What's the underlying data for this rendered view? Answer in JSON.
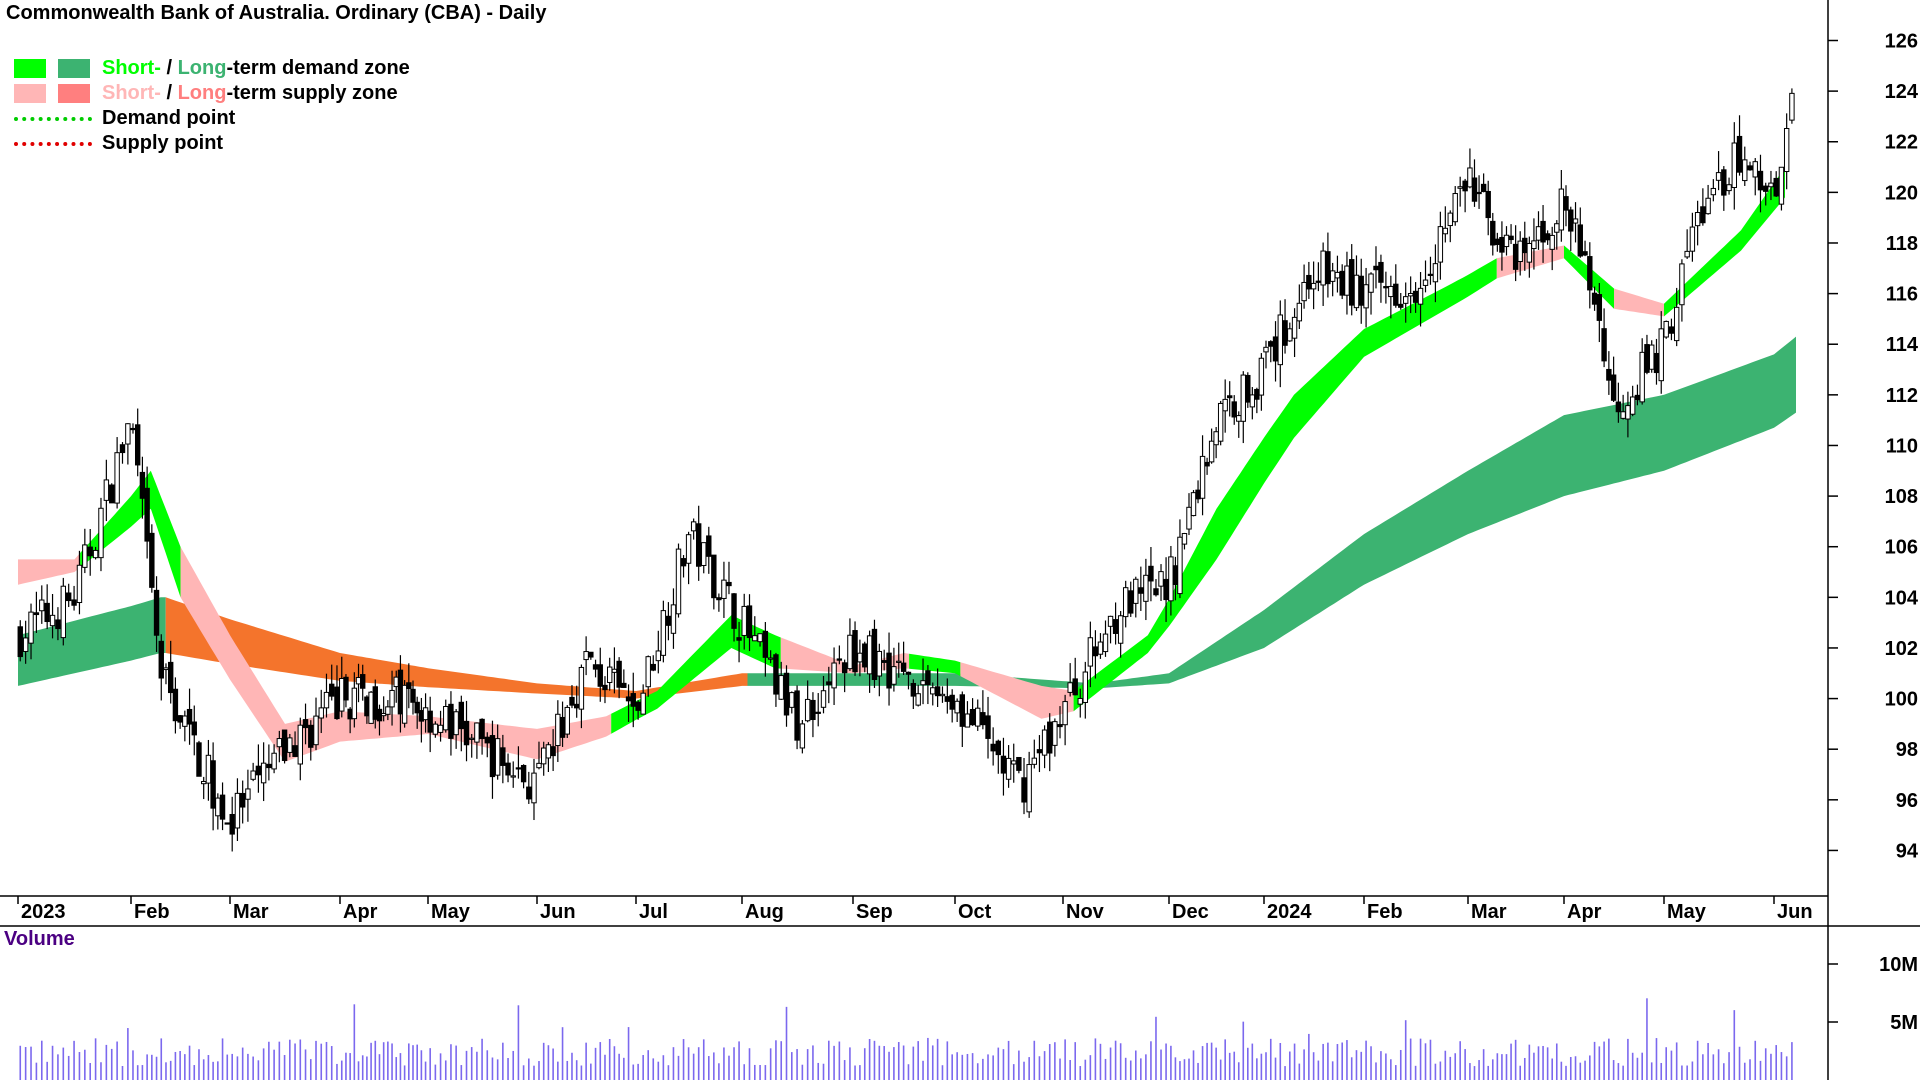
{
  "title": "Commonwealth Bank of Australia. Ordinary (CBA) - Daily",
  "legend": {
    "demand_short": "Short-",
    "demand_sep": " / ",
    "demand_long": "Long",
    "demand_rest": "-term demand zone",
    "supply_short": "Short-",
    "supply_sep": " / ",
    "supply_long": "Long",
    "supply_rest": "-term supply zone",
    "demand_point": "Demand point",
    "supply_point": "Supply point"
  },
  "colors": {
    "short_demand": "#00ff00",
    "long_demand": "#3cb371",
    "short_supply": "#ffb6b6",
    "long_supply": "#ff7f7f",
    "supply_band": "#f4742c",
    "demand_point": "#00cc00",
    "supply_point": "#e00000",
    "volume_bar": "#7b68ee",
    "volume_label": "#4b0082"
  },
  "chart_data": {
    "type": "candlestick",
    "x_labels": [
      "2023",
      "Feb",
      "Mar",
      "Apr",
      "May",
      "Jun",
      "Jul",
      "Aug",
      "Sep",
      "Oct",
      "Nov",
      "Dec",
      "2024",
      "Feb",
      "Mar",
      "Apr",
      "May",
      "Jun"
    ],
    "y_ticks": [
      94,
      96,
      98,
      100,
      102,
      104,
      106,
      108,
      110,
      112,
      114,
      116,
      118,
      120,
      122,
      124,
      126
    ],
    "ylim": [
      92.2,
      127.6
    ],
    "volume_label": "Volume",
    "volume_ticks": [
      "10M",
      "5M"
    ],
    "price_anchors": [
      {
        "month_index": 0,
        "close": 102.5
      },
      {
        "month_index": 0.5,
        "close": 104.0
      },
      {
        "month_index": 1.0,
        "close": 111.0
      },
      {
        "month_index": 1.3,
        "close": 101.0
      },
      {
        "month_index": 2.0,
        "close": 95.0
      },
      {
        "month_index": 2.4,
        "close": 97.5
      },
      {
        "month_index": 3.0,
        "close": 100.0
      },
      {
        "month_index": 3.7,
        "close": 100.0
      },
      {
        "month_index": 4.2,
        "close": 99.0
      },
      {
        "month_index": 5.0,
        "close": 96.5
      },
      {
        "month_index": 5.5,
        "close": 101.5
      },
      {
        "month_index": 6.0,
        "close": 99.5
      },
      {
        "month_index": 6.5,
        "close": 106.5
      },
      {
        "month_index": 7.0,
        "close": 103.0
      },
      {
        "month_index": 7.5,
        "close": 99.0
      },
      {
        "month_index": 8.0,
        "close": 102.0
      },
      {
        "month_index": 8.5,
        "close": 101.0
      },
      {
        "month_index": 9.0,
        "close": 100.0
      },
      {
        "month_index": 9.6,
        "close": 96.5
      },
      {
        "month_index": 10.0,
        "close": 99.5
      },
      {
        "month_index": 10.5,
        "close": 103.5
      },
      {
        "month_index": 11.0,
        "close": 104.5
      },
      {
        "month_index": 11.5,
        "close": 111.0
      },
      {
        "month_index": 12.0,
        "close": 113.0
      },
      {
        "month_index": 12.5,
        "close": 117.0
      },
      {
        "month_index": 13.0,
        "close": 116.0
      },
      {
        "month_index": 13.5,
        "close": 116.5
      },
      {
        "month_index": 14.0,
        "close": 120.5
      },
      {
        "month_index": 14.5,
        "close": 117.0
      },
      {
        "month_index": 15.0,
        "close": 119.5
      },
      {
        "month_index": 15.3,
        "close": 116.0
      },
      {
        "month_index": 15.5,
        "close": 111.5
      },
      {
        "month_index": 16.0,
        "close": 114.0
      },
      {
        "month_index": 16.3,
        "close": 119.0
      },
      {
        "month_index": 16.7,
        "close": 121.5
      },
      {
        "month_index": 17.0,
        "close": 120.0
      },
      {
        "month_index": 17.2,
        "close": 125.0
      }
    ],
    "short_zone": [
      {
        "month_index": 0,
        "upper": 105.5,
        "lower": 104.5,
        "zone": "supply"
      },
      {
        "month_index": 0.5,
        "upper": 105.5,
        "lower": 105.0,
        "zone": "demand"
      },
      {
        "month_index": 1.2,
        "upper": 109.0,
        "lower": 107.5,
        "zone": "demand"
      },
      {
        "month_index": 1.5,
        "upper": 106.0,
        "lower": 104.0,
        "zone": "supply"
      },
      {
        "month_index": 2.5,
        "upper": 99.0,
        "lower": 97.5,
        "zone": "supply"
      },
      {
        "month_index": 3.0,
        "upper": 99.5,
        "lower": 98.3,
        "zone": "supply"
      },
      {
        "month_index": 4.0,
        "upper": 99.3,
        "lower": 98.6,
        "zone": "supply"
      },
      {
        "month_index": 5.0,
        "upper": 98.8,
        "lower": 97.6,
        "zone": "supply"
      },
      {
        "month_index": 5.7,
        "upper": 99.3,
        "lower": 98.5,
        "zone": "demand"
      },
      {
        "month_index": 6.2,
        "upper": 100.3,
        "lower": 99.6,
        "zone": "demand"
      },
      {
        "month_index": 6.9,
        "upper": 103.3,
        "lower": 102.0,
        "zone": "demand"
      },
      {
        "month_index": 7.3,
        "upper": 102.5,
        "lower": 101.2,
        "zone": "supply"
      },
      {
        "month_index": 8.0,
        "upper": 101.3,
        "lower": 101.0,
        "zone": "supply"
      },
      {
        "month_index": 8.5,
        "upper": 101.8,
        "lower": 101.2,
        "zone": "demand"
      },
      {
        "month_index": 9.0,
        "upper": 101.5,
        "lower": 101.0,
        "zone": "supply"
      },
      {
        "month_index": 9.8,
        "upper": 100.5,
        "lower": 99.2,
        "zone": "supply"
      },
      {
        "month_index": 10.1,
        "upper": 100.3,
        "lower": 99.5,
        "zone": "demand"
      },
      {
        "month_index": 10.8,
        "upper": 102.5,
        "lower": 101.8,
        "zone": "demand"
      },
      {
        "month_index": 11.5,
        "upper": 107.5,
        "lower": 105.5,
        "zone": "demand"
      },
      {
        "month_index": 12.3,
        "upper": 112.0,
        "lower": 110.3,
        "zone": "demand"
      },
      {
        "month_index": 13.0,
        "upper": 114.6,
        "lower": 113.5,
        "zone": "demand"
      },
      {
        "month_index": 13.8,
        "upper": 116.3,
        "lower": 115.4,
        "zone": "demand"
      },
      {
        "month_index": 14.3,
        "upper": 117.4,
        "lower": 116.6,
        "zone": "supply"
      },
      {
        "month_index": 15.0,
        "upper": 117.9,
        "lower": 117.4,
        "zone": "demand"
      },
      {
        "month_index": 15.5,
        "upper": 116.2,
        "lower": 115.4,
        "zone": "supply"
      },
      {
        "month_index": 16.0,
        "upper": 115.6,
        "lower": 115.1,
        "zone": "demand"
      },
      {
        "month_index": 16.7,
        "upper": 118.5,
        "lower": 117.7,
        "zone": "demand"
      },
      {
        "month_index": 17.1,
        "upper": 121.0,
        "lower": 119.8,
        "zone": "demand"
      }
    ],
    "long_zone": [
      {
        "month_index": 0,
        "upper": 102.5,
        "lower": 100.5,
        "zone": "demand"
      },
      {
        "month_index": 1.3,
        "upper": 104.0,
        "lower": 101.8,
        "zone": "demand"
      },
      {
        "month_index": 1.35,
        "upper": 104.0,
        "lower": 101.8,
        "zone": "supply"
      },
      {
        "month_index": 3.0,
        "upper": 101.8,
        "lower": 100.7,
        "zone": "supply"
      },
      {
        "month_index": 5.0,
        "upper": 100.6,
        "lower": 100.2,
        "zone": "supply"
      },
      {
        "month_index": 6.0,
        "upper": 100.3,
        "lower": 100.0,
        "zone": "supply"
      },
      {
        "month_index": 7.0,
        "upper": 101.0,
        "lower": 100.5,
        "zone": "demand"
      },
      {
        "month_index": 9.0,
        "upper": 101.0,
        "lower": 100.5,
        "zone": "demand"
      },
      {
        "month_index": 10.3,
        "upper": 100.6,
        "lower": 100.4,
        "zone": "demand"
      },
      {
        "month_index": 11.0,
        "upper": 101.0,
        "lower": 100.6,
        "zone": "demand"
      },
      {
        "month_index": 12.0,
        "upper": 103.5,
        "lower": 102.0,
        "zone": "demand"
      },
      {
        "month_index": 13.0,
        "upper": 106.5,
        "lower": 104.5,
        "zone": "demand"
      },
      {
        "month_index": 14.0,
        "upper": 109.0,
        "lower": 106.5,
        "zone": "demand"
      },
      {
        "month_index": 15.0,
        "upper": 111.2,
        "lower": 108.0,
        "zone": "demand"
      },
      {
        "month_index": 16.0,
        "upper": 112.0,
        "lower": 109.0,
        "zone": "demand"
      },
      {
        "month_index": 17.0,
        "upper": 113.6,
        "lower": 110.7,
        "zone": "demand"
      },
      {
        "month_index": 17.2,
        "upper": 114.3,
        "lower": 111.3,
        "zone": "demand"
      }
    ]
  }
}
